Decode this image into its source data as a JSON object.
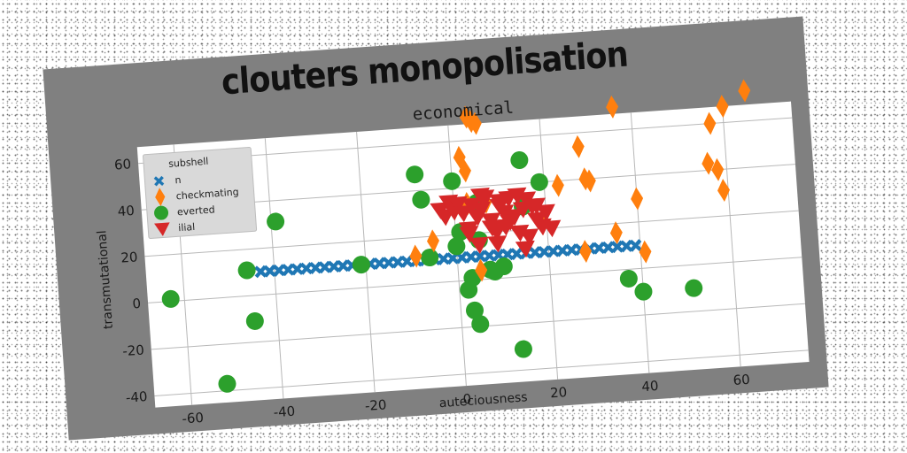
{
  "chart_data": {
    "type": "scatter",
    "title": "clouters monopolisation",
    "subtitle": "economical",
    "xlabel": "auteciousness",
    "ylabel": "transmutational",
    "xlim": [
      -68,
      75
    ],
    "ylim": [
      -45,
      67
    ],
    "x_ticks": [
      "-60",
      "-40",
      "-20",
      "0",
      "20",
      "40",
      "60"
    ],
    "y_ticks": [
      "-40",
      "-20",
      "0",
      "20",
      "40",
      "60"
    ],
    "grid": true,
    "legend": {
      "title": "subshell",
      "placement": "upper-left",
      "entries": [
        "n",
        "checkmating",
        "everted",
        "ilial"
      ]
    },
    "colors": {
      "n": "#1f77b4",
      "checkmating": "#ff7f0e",
      "everted": "#2ca02c",
      "ilial": "#d62728"
    },
    "series": [
      {
        "name": "n",
        "marker": "x-filled",
        "x": [
          -43,
          -41,
          -39,
          -37,
          -35,
          -33,
          -31,
          -29,
          -27,
          -25,
          -23,
          -21,
          -19,
          -17,
          -15,
          -13,
          -11,
          -9,
          -7,
          -5,
          -3,
          -1,
          1,
          3,
          5,
          7,
          9,
          11,
          13,
          15,
          17,
          19,
          21,
          23,
          25,
          27,
          29,
          31,
          33,
          35,
          37,
          39
        ],
        "y": [
          10,
          10,
          10,
          10,
          10,
          10,
          10,
          10,
          10,
          10,
          10,
          10,
          10,
          10,
          10,
          10,
          10,
          10,
          10,
          10,
          10,
          10,
          10,
          10,
          10,
          10,
          10,
          10,
          10,
          10,
          10,
          10,
          10,
          10,
          10,
          10,
          10,
          10,
          10,
          10,
          10,
          10
        ]
      },
      {
        "name": "checkmating",
        "marker": "thin-diamond",
        "x": [
          -9,
          -5,
          2,
          3,
          4,
          5,
          6,
          23,
          28,
          29,
          30,
          35,
          36,
          40,
          41,
          56,
          57,
          58,
          59,
          60,
          65
        ],
        "y": [
          12,
          18,
          53,
          47,
          70,
          68,
          67,
          38,
          54,
          40,
          39,
          16,
          70,
          30,
          7,
          43,
          60,
          40,
          31,
          67,
          73
        ],
        "extra_points": [
          [
            5,
            4
          ],
          [
            28,
            9
          ],
          [
            3,
            33
          ],
          [
            19,
            22
          ],
          [
            7,
            33
          ]
        ]
      },
      {
        "name": "everted",
        "marker": "circle",
        "x": [
          -63,
          -52,
          -46,
          -45,
          -39,
          -21,
          -8,
          -7,
          -6,
          0,
          1,
          2,
          3,
          4,
          5,
          7,
          8,
          10,
          13,
          15,
          15,
          19,
          37,
          40,
          51
        ],
        "y": [
          1,
          -37,
          11,
          -11,
          31,
          10,
          47,
          36,
          11,
          43,
          21,
          -4,
          -13,
          -19,
          33,
          4,
          3,
          5,
          -31,
          30,
          50,
          40,
          -4,
          -10,
          -10
        ],
        "extra_points": [
          [
            3,
            1
          ],
          [
            5,
            17
          ],
          [
            0,
            15
          ]
        ]
      },
      {
        "name": "ilial",
        "marker": "triangle-down",
        "x": [
          -3,
          -2,
          -1,
          0,
          1,
          2,
          3,
          4,
          5,
          6,
          7,
          8,
          9,
          10,
          11,
          12,
          13,
          14,
          15,
          16,
          17,
          18,
          19,
          20,
          21,
          6,
          8,
          10,
          12,
          14,
          16,
          18,
          3,
          5,
          9,
          11,
          15
        ],
        "y": [
          31,
          28,
          34,
          30,
          33,
          29,
          22,
          32,
          27,
          30,
          35,
          25,
          20,
          31,
          28,
          34,
          26,
          19,
          29,
          33,
          30,
          24,
          21,
          27,
          20,
          36,
          22,
          33,
          24,
          35,
          17,
          30,
          20,
          15,
          15,
          22,
          12
        ]
      }
    ]
  }
}
